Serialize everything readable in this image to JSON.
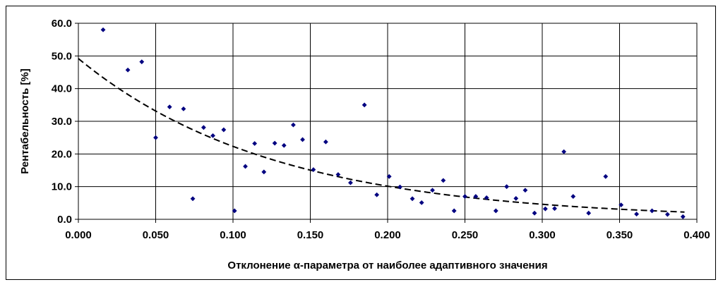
{
  "chart_data": {
    "type": "scatter",
    "title": "",
    "xlabel": "Отклонение α-параметра от наиболее адаптивного значения",
    "ylabel": "Рентабельность [%]",
    "xlim": [
      0,
      0.4
    ],
    "ylim": [
      0,
      60
    ],
    "x_ticks": [
      "0.000",
      "0.050",
      "0.100",
      "0.150",
      "0.200",
      "0.250",
      "0.300",
      "0.350",
      "0.400"
    ],
    "y_ticks": [
      "0.0",
      "10.0",
      "20.0",
      "30.0",
      "40.0",
      "50.0",
      "60.0"
    ],
    "grid": true,
    "legend": "none",
    "colors": {
      "points": "#000080",
      "trend": "#000000",
      "grid": "#000000"
    },
    "series": [
      {
        "points": [
          [
            0.016,
            58.0
          ],
          [
            0.032,
            45.7
          ],
          [
            0.041,
            48.2
          ],
          [
            0.05,
            25.0
          ],
          [
            0.059,
            34.4
          ],
          [
            0.068,
            33.8
          ],
          [
            0.074,
            6.3
          ],
          [
            0.081,
            28.1
          ],
          [
            0.087,
            25.6
          ],
          [
            0.094,
            27.4
          ],
          [
            0.101,
            2.6
          ],
          [
            0.108,
            16.2
          ],
          [
            0.114,
            23.2
          ],
          [
            0.12,
            14.5
          ],
          [
            0.127,
            23.3
          ],
          [
            0.133,
            22.6
          ],
          [
            0.139,
            28.9
          ],
          [
            0.145,
            24.4
          ],
          [
            0.152,
            15.2
          ],
          [
            0.16,
            23.7
          ],
          [
            0.168,
            13.7
          ],
          [
            0.176,
            11.2
          ],
          [
            0.185,
            35.0
          ],
          [
            0.193,
            7.5
          ],
          [
            0.201,
            13.1
          ],
          [
            0.208,
            9.9
          ],
          [
            0.216,
            6.3
          ],
          [
            0.222,
            5.1
          ],
          [
            0.229,
            8.9
          ],
          [
            0.236,
            11.9
          ],
          [
            0.243,
            2.6
          ],
          [
            0.25,
            7.0
          ],
          [
            0.257,
            7.0
          ],
          [
            0.264,
            6.6
          ],
          [
            0.27,
            2.6
          ],
          [
            0.277,
            10.0
          ],
          [
            0.283,
            6.4
          ],
          [
            0.289,
            8.9
          ],
          [
            0.295,
            1.9
          ],
          [
            0.302,
            3.2
          ],
          [
            0.308,
            3.3
          ],
          [
            0.314,
            20.7
          ],
          [
            0.32,
            7.0
          ],
          [
            0.33,
            1.9
          ],
          [
            0.341,
            13.1
          ],
          [
            0.351,
            4.4
          ],
          [
            0.361,
            1.6
          ],
          [
            0.371,
            2.6
          ],
          [
            0.381,
            1.5
          ],
          [
            0.391,
            0.8
          ]
        ]
      }
    ],
    "trendline": {
      "type": "exponential",
      "style": "dashed",
      "y0": 49.2,
      "rate": 7.9
    }
  }
}
